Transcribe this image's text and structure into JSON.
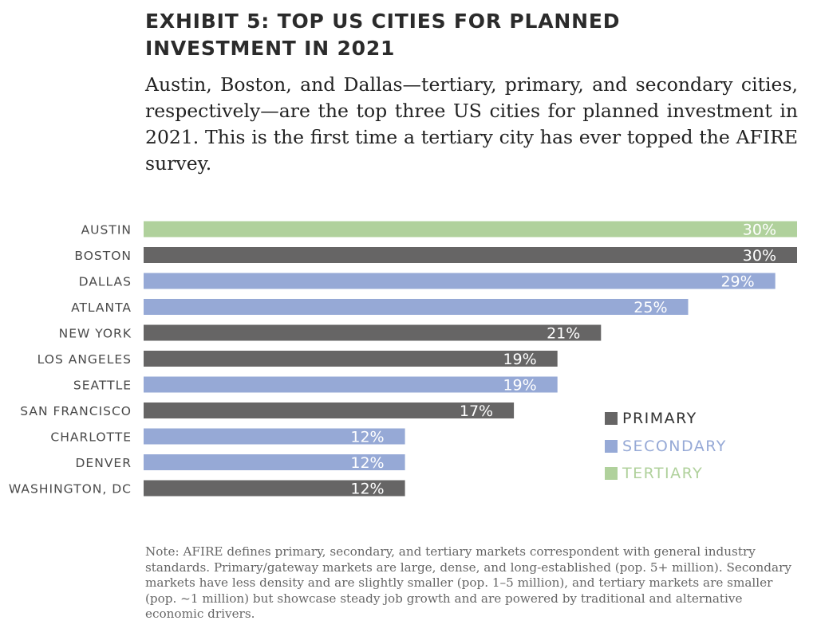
{
  "title": "EXHIBIT 5: TOP US CITIES FOR PLANNED INVESTMENT IN 2021",
  "subtitle": "Austin, Boston, and Dallas—tertiary, primary, and secondary cities, respectively—are the top three US cities for planned investment in 2021. This is the first time a tertiary city has ever topped the AFIRE survey.",
  "note": "Note: AFIRE defines primary, secondary, and tertiary markets correspondent with general industry standards. Primary/gateway markets are large, dense, and long-established (pop. 5+ million). Secondary markets have less density and are slightly smaller (pop. 1–5 million), and tertiary markets are smaller (pop. ~1 million) but showcase steady job growth and are powered by traditional and alternative economic drivers.",
  "colors": {
    "primary": "#666565",
    "secondary": "#96a9d6",
    "tertiary": "#b0d19c",
    "label": "#4a4a4a"
  },
  "legend": [
    {
      "name": "PRIMARY",
      "key": "primary"
    },
    {
      "name": "SECONDARY",
      "key": "secondary"
    },
    {
      "name": "TERTIARY",
      "key": "tertiary"
    }
  ],
  "chart_data": {
    "type": "bar",
    "orientation": "horizontal",
    "title": "",
    "xlabel": "",
    "ylabel": "",
    "xlim": [
      0,
      30
    ],
    "grid": false,
    "legend_position": "right",
    "categories": [
      "AUSTIN",
      "BOSTON",
      "DALLAS",
      "ATLANTA",
      "NEW YORK",
      "LOS ANGELES",
      "SEATTLE",
      "SAN FRANCISCO",
      "CHARLOTTE",
      "DENVER",
      "WASHINGTON, DC"
    ],
    "values": [
      30,
      30,
      29,
      25,
      21,
      19,
      19,
      17,
      12,
      12,
      12
    ],
    "value_labels": [
      "30%",
      "30%",
      "29%",
      "25%",
      "21%",
      "19%",
      "19%",
      "17%",
      "12%",
      "12%",
      "12%"
    ],
    "market_type": [
      "tertiary",
      "primary",
      "secondary",
      "secondary",
      "primary",
      "primary",
      "secondary",
      "primary",
      "secondary",
      "secondary",
      "primary"
    ]
  }
}
